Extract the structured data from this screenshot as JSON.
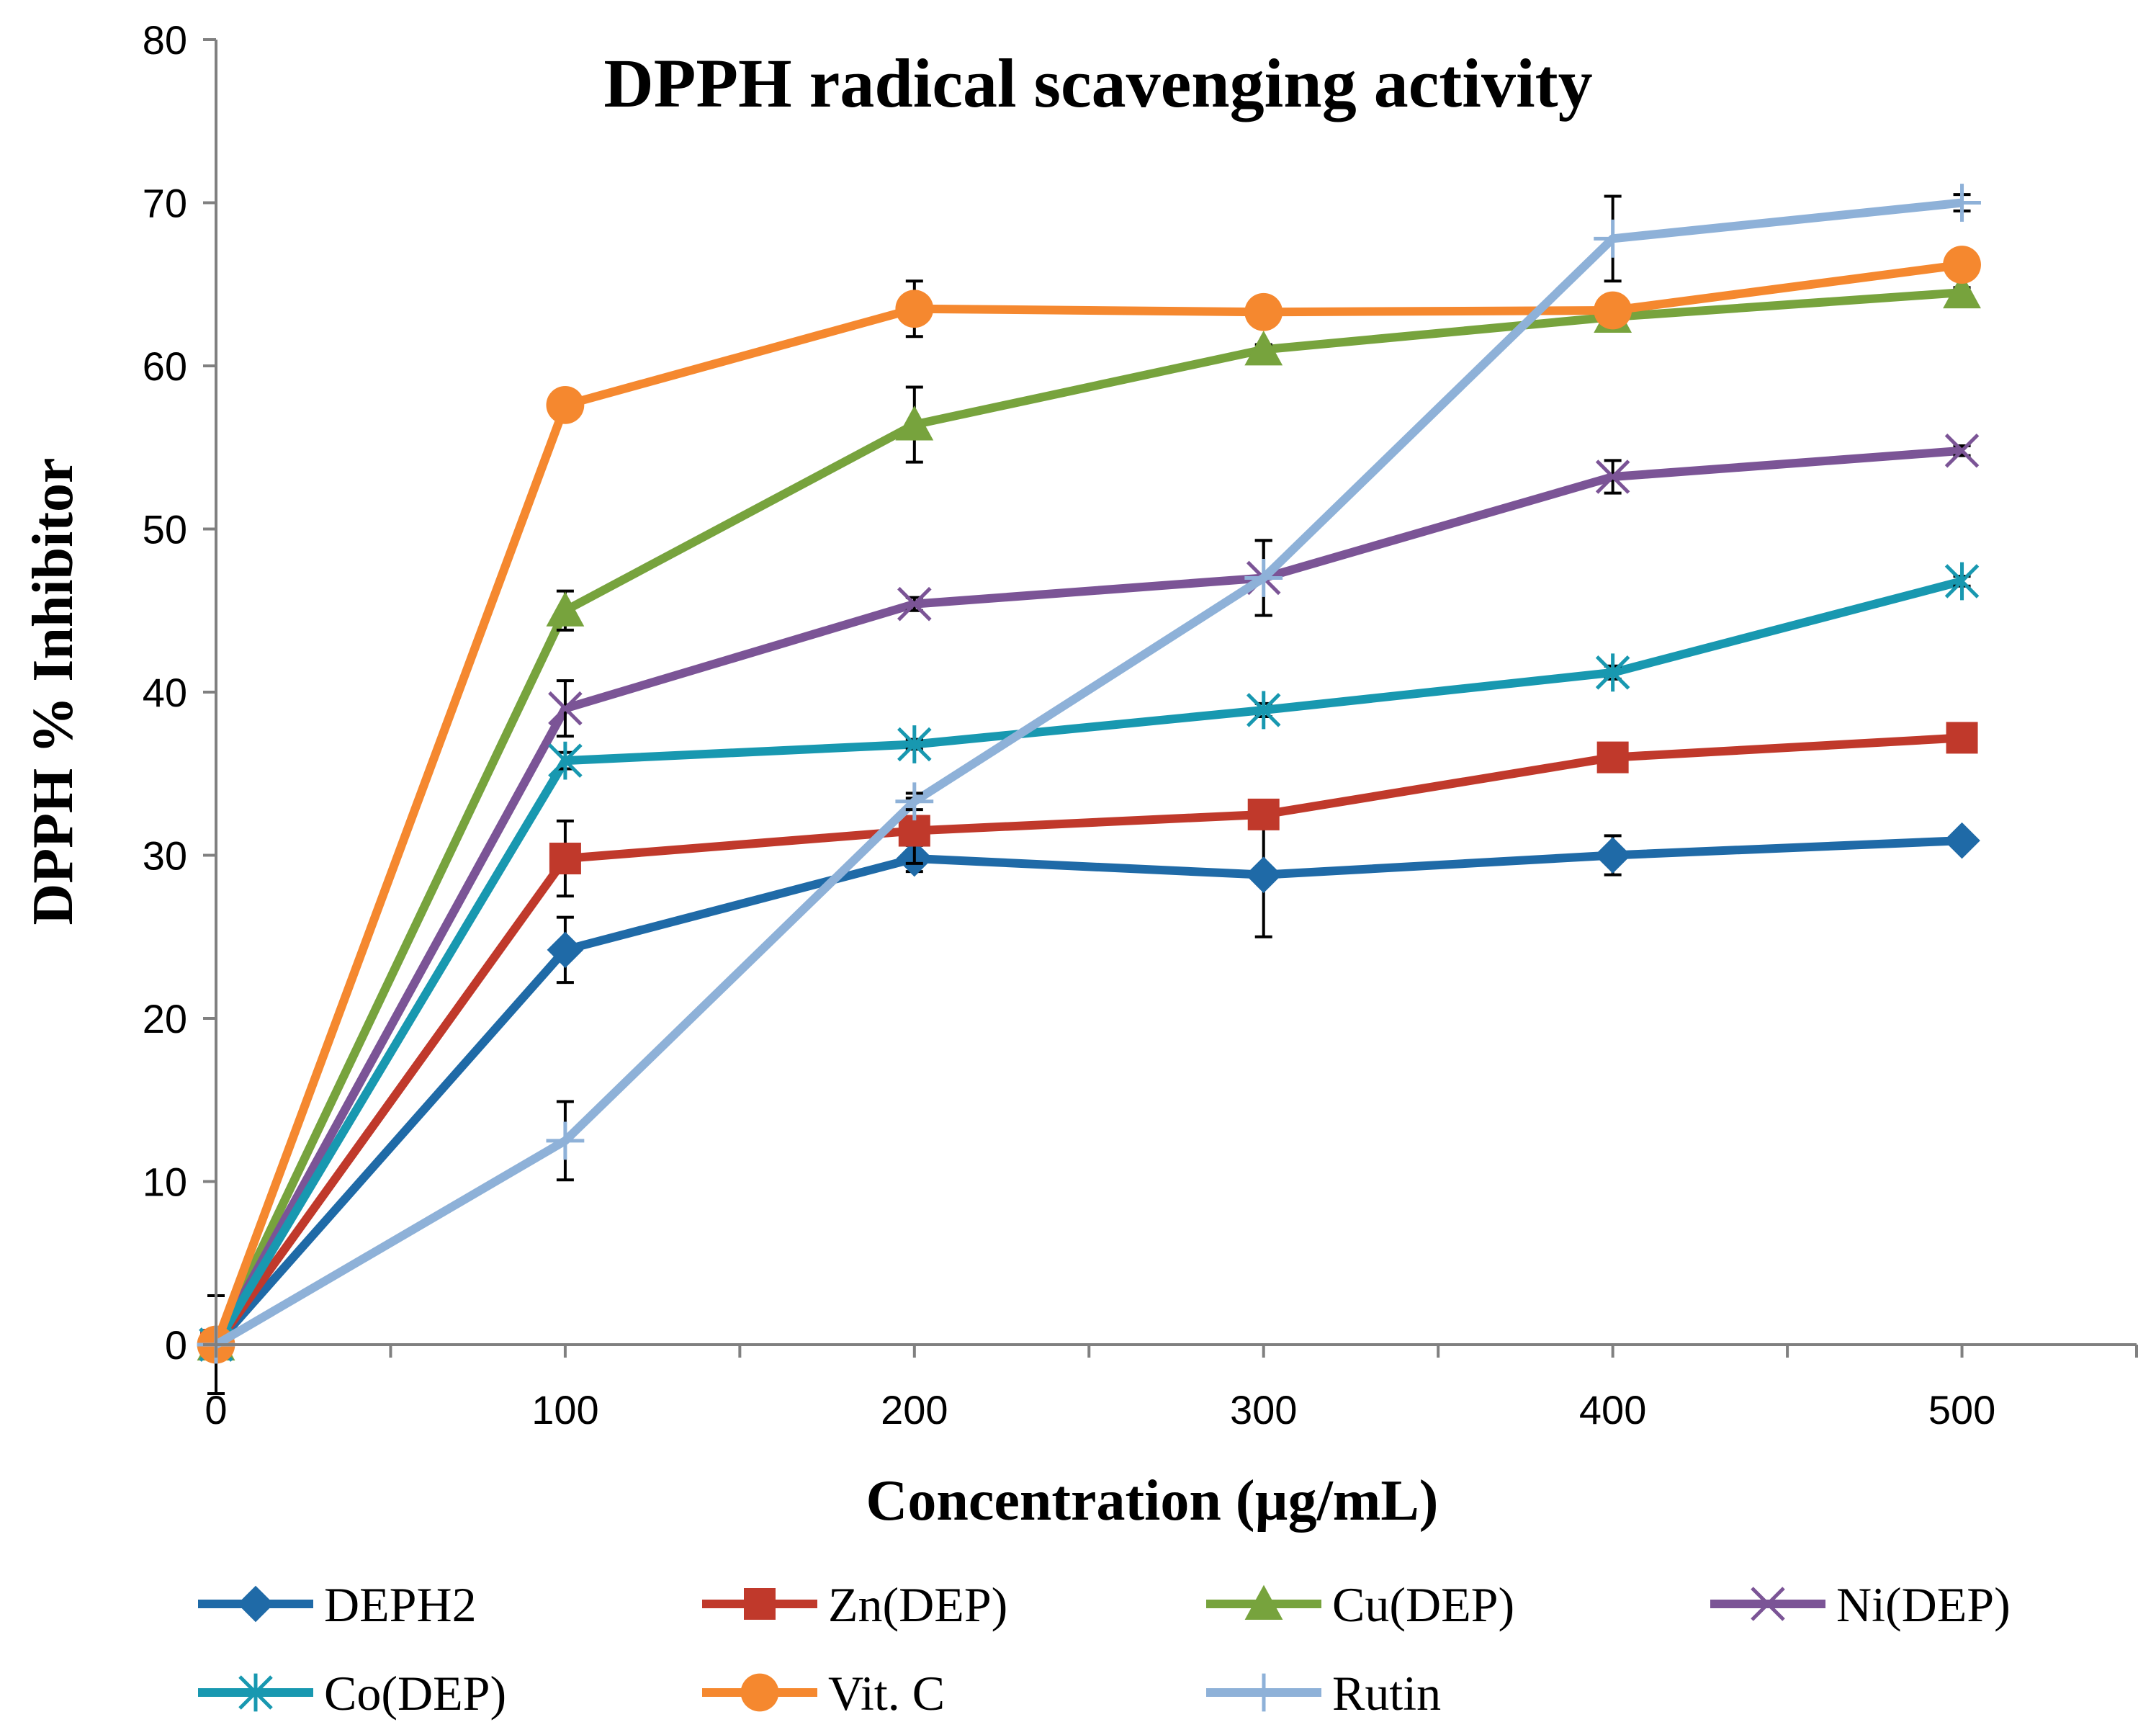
{
  "chart_data": {
    "type": "line",
    "title": "DPPH radical scavenging activity",
    "xlabel": "Concentration (µg/mL)",
    "ylabel": "DPPH % Inhibitor",
    "x": [
      0,
      100,
      200,
      300,
      400,
      500
    ],
    "x_tick_labels": [
      "0",
      "100",
      "200",
      "300",
      "400",
      "500"
    ],
    "xlim": [
      0,
      550
    ],
    "ylim": [
      0,
      80
    ],
    "y_ticks": [
      0,
      10,
      20,
      30,
      40,
      50,
      60,
      70,
      80
    ],
    "y_tick_labels": [
      "0",
      "10",
      "20",
      "30",
      "40",
      "50",
      "60",
      "70",
      "80"
    ],
    "grid": false,
    "legend_position": "bottom",
    "series": [
      {
        "name": "DEPH2",
        "color": "#1f6aa7",
        "marker": "diamond",
        "values": [
          0,
          24.2,
          29.8,
          28.8,
          30.0,
          30.9
        ],
        "errors": [
          0,
          2.0,
          0.8,
          3.8,
          1.2,
          0.3
        ]
      },
      {
        "name": "Zn(DEP)",
        "color": "#c0392b",
        "marker": "square",
        "values": [
          0,
          29.8,
          31.5,
          32.5,
          36.0,
          37.2
        ],
        "errors": [
          0,
          2.3,
          2.0,
          0.8,
          0.5,
          0.3
        ]
      },
      {
        "name": "Cu(DEP)",
        "color": "#77a33d",
        "marker": "triangle",
        "values": [
          0,
          45.0,
          56.4,
          61.0,
          63.0,
          64.5
        ],
        "errors": [
          0,
          1.2,
          2.3,
          0.3,
          0.3,
          0.3
        ]
      },
      {
        "name": "Ni(DEP)",
        "color": "#7b5496",
        "marker": "x",
        "values": [
          0,
          39.0,
          45.4,
          47.0,
          53.2,
          54.8
        ],
        "errors": [
          0,
          1.7,
          0.4,
          2.3,
          1.0,
          0.3
        ]
      },
      {
        "name": "Co(DEP)",
        "color": "#1898b0",
        "marker": "asterisk",
        "values": [
          0,
          35.8,
          36.8,
          38.9,
          41.2,
          46.8
        ],
        "errors": [
          0,
          0.5,
          0.3,
          0.4,
          0.4,
          0.3
        ]
      },
      {
        "name": "Vit. C",
        "color": "#f5882f",
        "marker": "circle",
        "values": [
          0,
          57.6,
          63.5,
          63.3,
          63.4,
          66.2
        ],
        "errors": [
          0,
          0.4,
          1.7,
          0.3,
          0.3,
          0.3
        ]
      },
      {
        "name": "Rutin",
        "color": "#8eb1d8",
        "marker": "plus",
        "values": [
          0,
          12.5,
          33.3,
          47.0,
          67.8,
          70.0
        ],
        "errors": [
          3.0,
          2.4,
          0.5,
          2.3,
          2.6,
          0.5
        ]
      }
    ]
  }
}
